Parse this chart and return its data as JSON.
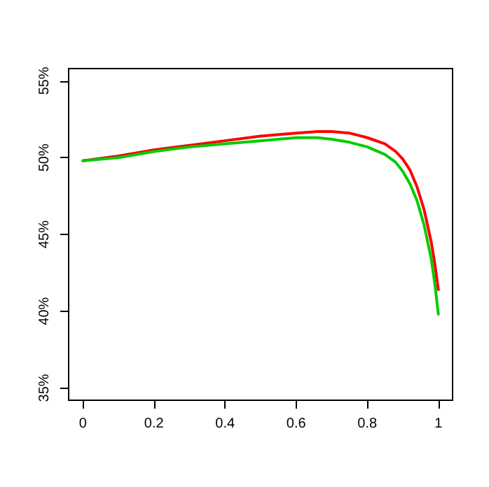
{
  "chart_data": {
    "type": "line",
    "x": [
      0,
      0.1,
      0.2,
      0.3,
      0.4,
      0.5,
      0.6,
      0.66,
      0.7,
      0.75,
      0.8,
      0.85,
      0.88,
      0.9,
      0.92,
      0.94,
      0.96,
      0.98,
      0.99,
      1.0
    ],
    "series": [
      {
        "color": "#ff0000",
        "values": [
          49.8,
          50.1,
          50.5,
          50.8,
          51.1,
          51.4,
          51.6,
          51.7,
          51.7,
          51.6,
          51.3,
          50.9,
          50.4,
          49.9,
          49.2,
          48.1,
          46.6,
          44.5,
          43.1,
          41.4
        ]
      },
      {
        "color": "#00cc00",
        "values": [
          49.8,
          50.0,
          50.4,
          50.7,
          50.9,
          51.1,
          51.3,
          51.3,
          51.2,
          51.0,
          50.7,
          50.2,
          49.7,
          49.1,
          48.3,
          47.2,
          45.6,
          43.4,
          41.8,
          39.8
        ]
      }
    ],
    "xlim": [
      -0.04,
      1.04
    ],
    "xticks": [
      0,
      {
        "value": 0.2,
        "label": "0.2"
      },
      {
        "value": 0.4,
        "label": "0.4"
      },
      {
        "value": 0.6,
        "label": "0.6"
      },
      {
        "value": 0.8,
        "label": "0.8"
      },
      1
    ],
    "ylim": [
      34.2,
      55.8
    ],
    "yticks": [
      {
        "value": 35,
        "label": "35%"
      },
      {
        "value": 40,
        "label": "40%"
      },
      {
        "value": 45,
        "label": "45%"
      },
      {
        "value": 50,
        "label": "50%"
      },
      {
        "value": 55,
        "label": "55%"
      }
    ],
    "grid": false,
    "marker": "none",
    "line_style": "solid"
  }
}
